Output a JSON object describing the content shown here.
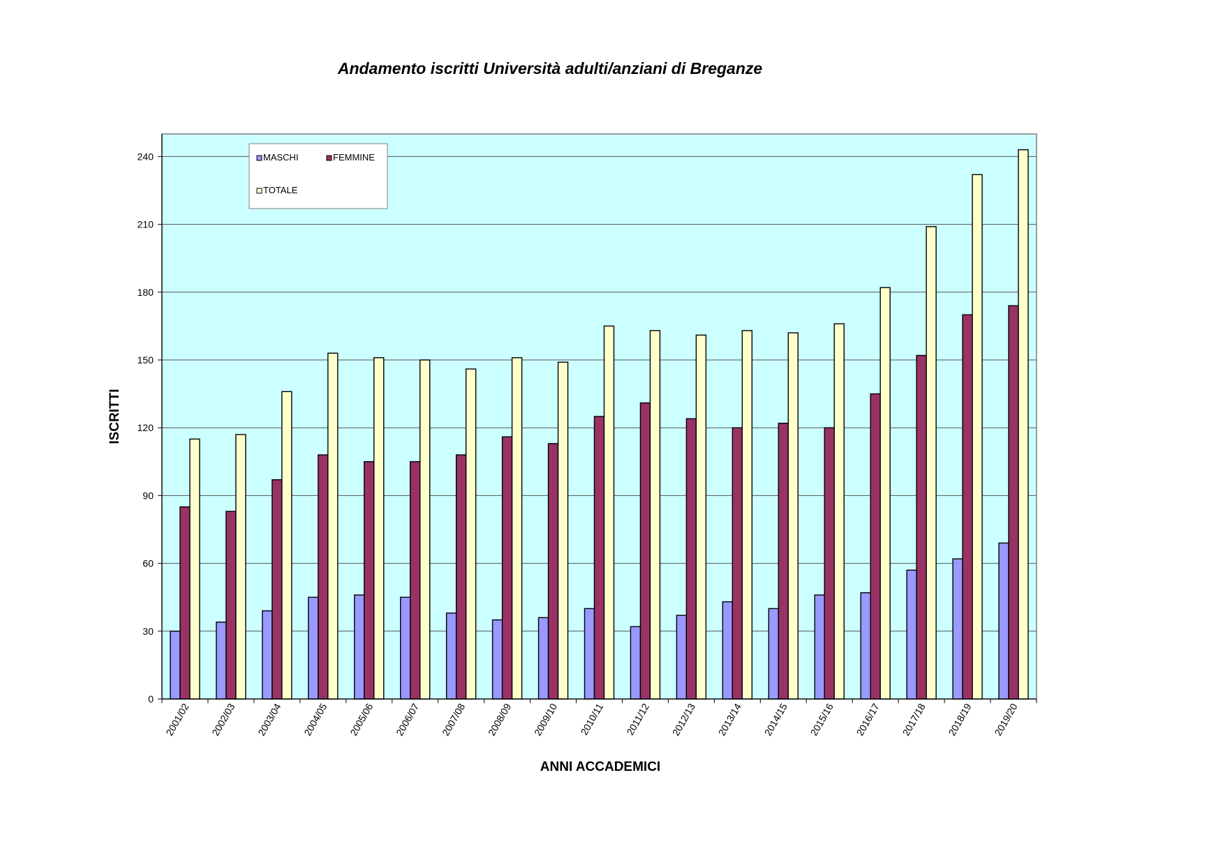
{
  "chart_data": {
    "type": "bar",
    "title": "Andamento iscritti Università adulti/anziani di Breganze",
    "xlabel": "ANNI ACCADEMICI",
    "ylabel": "ISCRITTI",
    "ylim": [
      0,
      250
    ],
    "yticks": [
      0,
      30,
      60,
      90,
      120,
      150,
      180,
      210,
      240
    ],
    "grid": true,
    "legend_position": "top-left",
    "plot_background": "#ccffff",
    "categories": [
      "2001/02",
      "2002/03",
      "2003/04",
      "2004/05",
      "2005/06",
      "2006/07",
      "2007/08",
      "2008/09",
      "2009/10",
      "2010/11",
      "2011/12",
      "2012/13",
      "2013/14",
      "2014/15",
      "2015/16",
      "2016/17",
      "2017/18",
      "2018/19",
      "2019/20"
    ],
    "series": [
      {
        "name": "MASCHI",
        "color": "#9999ff",
        "values": [
          30,
          34,
          39,
          45,
          46,
          45,
          38,
          35,
          36,
          40,
          32,
          37,
          43,
          40,
          46,
          47,
          57,
          62,
          69
        ]
      },
      {
        "name": "FEMMINE",
        "color": "#993366",
        "values": [
          85,
          83,
          97,
          108,
          105,
          105,
          108,
          116,
          113,
          125,
          131,
          124,
          120,
          122,
          120,
          135,
          152,
          170,
          174
        ]
      },
      {
        "name": "TOTALE",
        "color": "#ffffcc",
        "values": [
          115,
          117,
          136,
          153,
          151,
          150,
          146,
          151,
          149,
          165,
          163,
          161,
          163,
          162,
          166,
          182,
          209,
          232,
          243
        ]
      }
    ]
  }
}
